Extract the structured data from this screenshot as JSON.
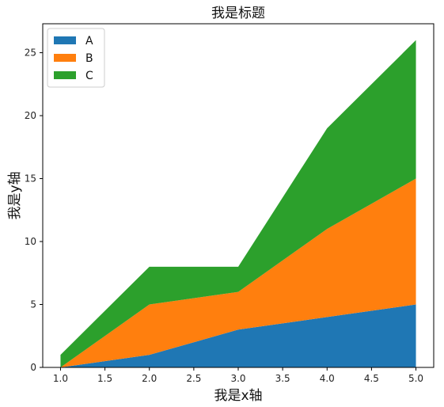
{
  "chart_data": {
    "type": "area",
    "stacked": true,
    "title": "我是标题",
    "xlabel": "我是x轴",
    "ylabel": "我是y轴",
    "x": [
      1.0,
      2.0,
      3.0,
      4.0,
      5.0
    ],
    "xlim": [
      0.8,
      5.2
    ],
    "ylim": [
      0,
      27.3
    ],
    "xticks": [
      "1.0",
      "1.5",
      "2.0",
      "2.5",
      "3.0",
      "3.5",
      "4.0",
      "4.5",
      "5.0"
    ],
    "yticks": [
      "0",
      "5",
      "10",
      "15",
      "20",
      "25"
    ],
    "grid": false,
    "legend_position": "top-left",
    "series": [
      {
        "name": "A",
        "color": "#1f77b4",
        "values": [
          0,
          1,
          3,
          4,
          5
        ]
      },
      {
        "name": "B",
        "color": "#ff7f0e",
        "values": [
          0,
          4,
          3,
          7,
          10
        ]
      },
      {
        "name": "C",
        "color": "#2ca02c",
        "values": [
          1,
          3,
          2,
          8,
          11
        ]
      }
    ]
  }
}
